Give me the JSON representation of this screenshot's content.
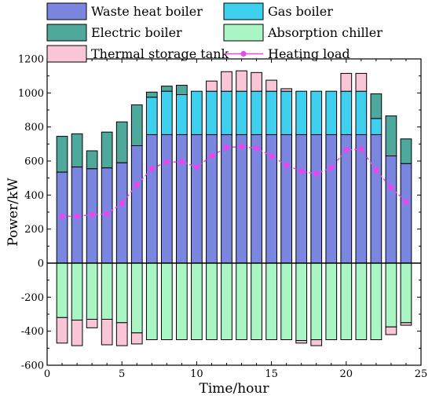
{
  "chart_data": {
    "type": "bar",
    "stacked": true,
    "xlabel": "Time/hour",
    "ylabel": "Power/kW",
    "xlim": [
      0,
      25
    ],
    "ylim": [
      -600,
      1200
    ],
    "xticks": [
      0,
      5,
      10,
      15,
      20,
      25
    ],
    "yticks": [
      -600,
      -400,
      -200,
      0,
      200,
      400,
      600,
      800,
      1000,
      1200
    ],
    "x": [
      1,
      2,
      3,
      4,
      5,
      6,
      7,
      8,
      9,
      10,
      11,
      12,
      13,
      14,
      15,
      16,
      17,
      18,
      19,
      20,
      21,
      22,
      23,
      24
    ],
    "series": [
      {
        "name": "Waste heat boiler",
        "color": "#7b86e0",
        "values": [
          535,
          565,
          555,
          560,
          590,
          690,
          755,
          755,
          755,
          755,
          755,
          755,
          755,
          755,
          755,
          755,
          755,
          755,
          755,
          755,
          755,
          755,
          630,
          585
        ]
      },
      {
        "name": "Gas boiler",
        "color": "#3fd0ef",
        "values": [
          0,
          0,
          0,
          0,
          0,
          0,
          220,
          255,
          235,
          255,
          255,
          255,
          255,
          255,
          255,
          255,
          255,
          255,
          255,
          255,
          255,
          95,
          0,
          0
        ]
      },
      {
        "name": "Electric boiler",
        "color": "#4fa89c",
        "values": [
          210,
          195,
          105,
          210,
          240,
          240,
          30,
          30,
          55,
          0,
          0,
          0,
          0,
          0,
          0,
          0,
          0,
          0,
          0,
          0,
          0,
          145,
          235,
          145
        ]
      },
      {
        "name": "Absorption chiller",
        "color": "#aaf5c4",
        "values": [
          -320,
          -335,
          -330,
          -330,
          -350,
          -410,
          -450,
          -450,
          -450,
          -450,
          -450,
          -450,
          -450,
          -450,
          -450,
          -450,
          -455,
          -450,
          -450,
          -450,
          -450,
          -450,
          -375,
          -350
        ]
      },
      {
        "name": "Thermal storage tank",
        "color": "#f8c6d6",
        "values": [
          -150,
          -150,
          -50,
          -150,
          -135,
          -65,
          0,
          0,
          0,
          0,
          60,
          115,
          120,
          110,
          65,
          15,
          -15,
          -35,
          0,
          105,
          105,
          0,
          -45,
          -15
        ]
      }
    ],
    "line_series": {
      "name": "Heating load",
      "color": "#ee44ee",
      "values": [
        275,
        275,
        285,
        290,
        350,
        460,
        555,
        595,
        595,
        565,
        630,
        680,
        685,
        675,
        630,
        575,
        540,
        525,
        560,
        665,
        670,
        545,
        445,
        360
      ]
    },
    "legend": {
      "placement": "top",
      "columns": 2
    }
  }
}
